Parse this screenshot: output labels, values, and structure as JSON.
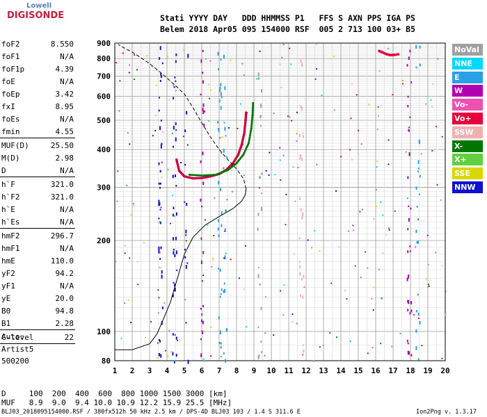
{
  "logo": {
    "top": "Lowell",
    "bottom": "DIGISONDE"
  },
  "header": {
    "line1": "Stati YYYY DAY   DDD HHMMSS P1   FFS S AXN PPS IGA PS",
    "line2": "Belem 2018 Apr05 095 154000 RSF  005 2 713 100 03+ B5"
  },
  "params_group1": [
    {
      "name": "foF2",
      "value": "8.550"
    },
    {
      "name": "foF1",
      "value": "N/A"
    },
    {
      "name": "foF1p",
      "value": "4.39"
    },
    {
      "name": "foE",
      "value": "N/A"
    },
    {
      "name": "foEp",
      "value": "3.42"
    },
    {
      "name": "fxI",
      "value": "8.95"
    },
    {
      "name": "foEs",
      "value": "N/A"
    },
    {
      "name": "fmin",
      "value": "4.55"
    }
  ],
  "params_group2": [
    {
      "name": "MUF(D)",
      "value": "25.50"
    },
    {
      "name": "M(D)",
      "value": "2.98"
    },
    {
      "name": "D",
      "value": "N/A"
    }
  ],
  "params_group3": [
    {
      "name": "h`F",
      "value": "321.0"
    },
    {
      "name": "h`F2",
      "value": "321.0"
    },
    {
      "name": "h`E",
      "value": "N/A"
    },
    {
      "name": "h`Es",
      "value": "N/A"
    }
  ],
  "params_group4": [
    {
      "name": "hmF2",
      "value": "296.7"
    },
    {
      "name": "hmF1",
      "value": "N/A"
    },
    {
      "name": "hmE",
      "value": "110.0"
    },
    {
      "name": "yF2",
      "value": "94.2"
    },
    {
      "name": "yF1",
      "value": "N/A"
    },
    {
      "name": "yE",
      "value": "20.0"
    },
    {
      "name": "B0",
      "value": "94.8"
    },
    {
      "name": "B1",
      "value": "2.28"
    }
  ],
  "clevel": {
    "name": "C-level",
    "value": "22"
  },
  "auto": {
    "line1": "Auto:",
    "line2": "Artist5",
    "line3": "500200"
  },
  "legend": [
    {
      "label": "NoVal",
      "color": "#a0a0a0"
    },
    {
      "label": "NNE",
      "color": "#00d8ff"
    },
    {
      "label": "E",
      "color": "#2aa0e6"
    },
    {
      "label": "W",
      "color": "#b000b0"
    },
    {
      "label": "Vo-",
      "color": "#f050b0"
    },
    {
      "label": "Vo+",
      "color": "#e8003c"
    },
    {
      "label": "SSW",
      "color": "#f0b0b0"
    },
    {
      "label": "X-",
      "color": "#007800"
    },
    {
      "label": "X+",
      "color": "#60d040"
    },
    {
      "label": "SSE",
      "color": "#d8d800"
    },
    {
      "label": "NNW",
      "color": "#1010d0"
    }
  ],
  "bottom_table": {
    "d_row": "D     100  200  400  600  800 1000 1500 3000 [km]",
    "muf_row": "MUF   8.9  9.0  9.4 10.0 10.9 12.2 15.9 25.5 [MHz]"
  },
  "footer": {
    "left": "BLJ03_2018095154000.RSF / 380fx512h 50 kHz 2.5 km / DPS-4D BLJ03 103 / 1.4 S 311.6 E",
    "right": "Ion2Png v. 1.3.17"
  },
  "chart_data": {
    "type": "scatter",
    "x_ticks": [
      1,
      2,
      3,
      4,
      5,
      6,
      7,
      8,
      9,
      10,
      11,
      12,
      13,
      14,
      15,
      16,
      17,
      18,
      19,
      20
    ],
    "y_ticks": [
      80,
      100,
      200,
      300,
      400,
      500,
      600,
      700,
      800,
      900
    ],
    "xlim": [
      1,
      20
    ],
    "ylim": [
      80,
      900
    ],
    "y_scale": "log",
    "grid": true,
    "series": [
      {
        "name": "O",
        "color": "#d0003c",
        "points": [
          [
            4.55,
            370
          ],
          [
            4.7,
            340
          ],
          [
            5.0,
            326
          ],
          [
            5.5,
            321
          ],
          [
            6.0,
            322
          ],
          [
            6.5,
            326
          ],
          [
            7.0,
            332
          ],
          [
            7.4,
            342
          ],
          [
            7.8,
            360
          ],
          [
            8.1,
            385
          ],
          [
            8.3,
            415
          ],
          [
            8.45,
            455
          ],
          [
            8.52,
            500
          ],
          [
            8.55,
            530
          ]
        ]
      },
      {
        "name": "X",
        "color": "#007800",
        "points": [
          [
            5.3,
            330
          ],
          [
            6.0,
            328
          ],
          [
            6.8,
            330
          ],
          [
            7.5,
            342
          ],
          [
            8.0,
            360
          ],
          [
            8.4,
            385
          ],
          [
            8.7,
            420
          ],
          [
            8.85,
            470
          ],
          [
            8.92,
            520
          ],
          [
            8.95,
            570
          ]
        ]
      },
      {
        "name": "Profile",
        "color": "#000000",
        "points": [
          [
            1.0,
            87
          ],
          [
            2.0,
            87
          ],
          [
            3.0,
            91
          ],
          [
            3.42,
            98
          ],
          [
            3.8,
            110
          ],
          [
            4.2,
            125
          ],
          [
            4.6,
            150
          ],
          [
            5.0,
            180
          ],
          [
            5.5,
            205
          ],
          [
            6.2,
            225
          ],
          [
            7.0,
            240
          ],
          [
            7.8,
            255
          ],
          [
            8.3,
            270
          ],
          [
            8.5,
            283
          ],
          [
            8.55,
            296.7
          ]
        ]
      },
      {
        "name": "Topside model",
        "color": "#000000",
        "points": [
          [
            8.55,
            296.7
          ],
          [
            8.4,
            320
          ],
          [
            8.0,
            345
          ],
          [
            7.5,
            370
          ],
          [
            7.0,
            400
          ],
          [
            6.5,
            440
          ],
          [
            6.0,
            490
          ],
          [
            5.5,
            550
          ],
          [
            5.0,
            610
          ],
          [
            4.5,
            650
          ],
          [
            4.0,
            690
          ],
          [
            3.5,
            730
          ],
          [
            3.0,
            770
          ],
          [
            2.5,
            805
          ],
          [
            2.0,
            840
          ],
          [
            1.5,
            870
          ],
          [
            1.2,
            890
          ]
        ]
      },
      {
        "name": "Oblique echo",
        "color": "#e8003c",
        "points": [
          [
            16.2,
            848
          ],
          [
            16.4,
            838
          ],
          [
            16.6,
            828
          ],
          [
            16.8,
            822
          ],
          [
            17.0,
            822
          ],
          [
            17.3,
            826
          ]
        ]
      }
    ]
  }
}
